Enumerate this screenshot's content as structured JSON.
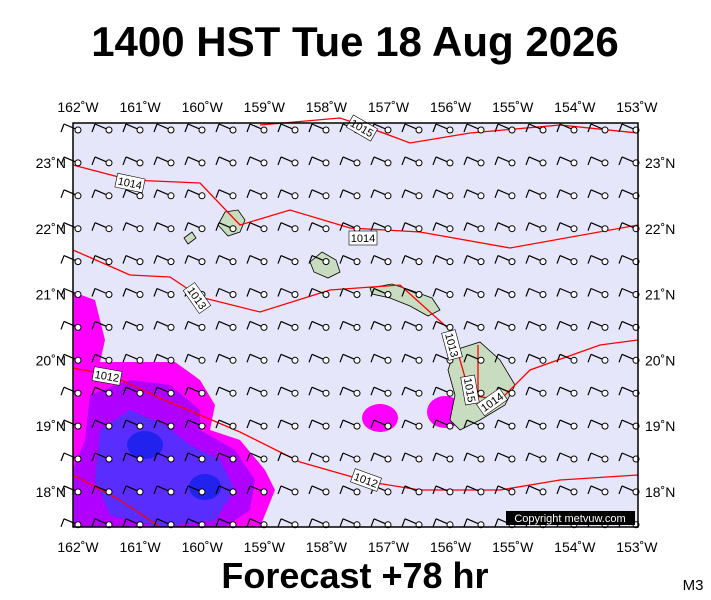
{
  "title": "1400 HST Tue 18 Aug 2026",
  "axes": {
    "longitudes": [
      "162˚W",
      "161˚W",
      "160˚W",
      "159˚W",
      "158˚W",
      "157˚W",
      "156˚W",
      "155˚W",
      "154˚W",
      "153˚W"
    ],
    "latitudes": [
      "23˚N",
      "22˚N",
      "21˚N",
      "20˚N",
      "19˚N",
      "18˚N"
    ]
  },
  "isobars": [
    "1015",
    "1014",
    "1014",
    "1013",
    "1013",
    "1012",
    "1012",
    "1015",
    "1014"
  ],
  "copyright": "Copyright metvuw.com",
  "footer": {
    "forecast": "Forecast +78 hr",
    "model": "M3"
  }
}
